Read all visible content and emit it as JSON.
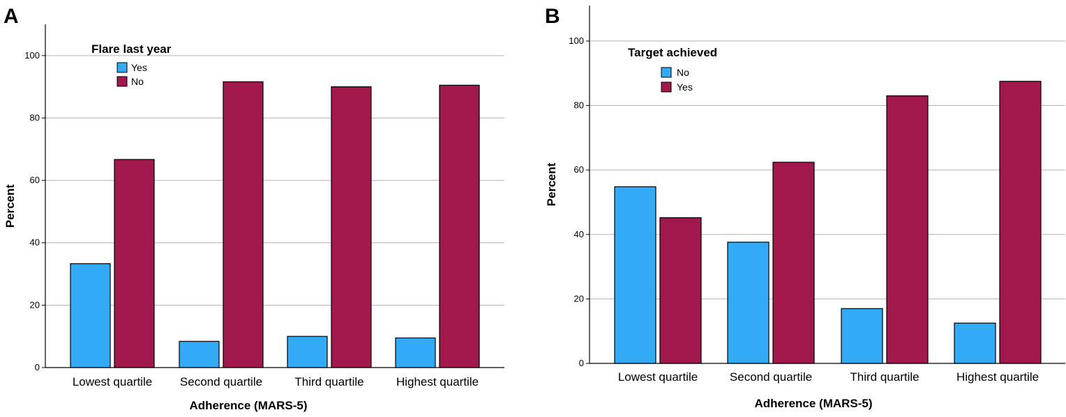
{
  "chart_data": [
    {
      "panel": "A",
      "type": "bar",
      "categories": [
        "Lowest quartile",
        "Second quartile",
        "Third quartile",
        "Highest quartile"
      ],
      "series": [
        {
          "name": "Yes",
          "color": "#33aaf5",
          "values": [
            33.3,
            8.4,
            10.0,
            9.5
          ]
        },
        {
          "name": "No",
          "color": "#a0184c",
          "values": [
            66.7,
            91.6,
            90.0,
            90.5
          ]
        }
      ],
      "legend_title": "Flare last year",
      "legend_position": "top-left",
      "xlabel": "Adherence (MARS-5)",
      "ylabel": "Percent",
      "yticks": [
        0,
        20,
        40,
        60,
        80,
        100
      ],
      "ylim": [
        0,
        110
      ],
      "grid": "horizontal"
    },
    {
      "panel": "B",
      "type": "bar",
      "categories": [
        "Lowest quartile",
        "Second quartile",
        "Third quartile",
        "Highest quartile"
      ],
      "series": [
        {
          "name": "No",
          "color": "#33aaf5",
          "values": [
            54.8,
            37.6,
            17.0,
            12.5
          ]
        },
        {
          "name": "Yes",
          "color": "#a0184c",
          "values": [
            45.2,
            62.4,
            83.0,
            87.5
          ]
        }
      ],
      "legend_title": "Target achieved",
      "legend_position": "top-left",
      "xlabel": "Adherence (MARS-5)",
      "ylabel": "Percent",
      "yticks": [
        0,
        20,
        40,
        60,
        80,
        100
      ],
      "ylim": [
        0,
        111
      ],
      "grid": "horizontal"
    }
  ]
}
